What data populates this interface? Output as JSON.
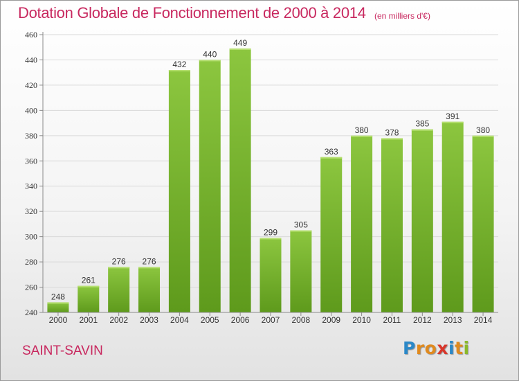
{
  "header": {
    "title": "Dotation Globale de Fonctionnement de 2000 à 2014",
    "unit": "(en milliers d'€)"
  },
  "footer": {
    "place": "SAINT-SAVIN",
    "logo": {
      "letters": [
        "P",
        "r",
        "o",
        "x",
        "i",
        "t",
        "i"
      ],
      "colors": [
        "#2a88c8",
        "#e08a1e",
        "#e08a1e",
        "#d8362a",
        "#2a88c8",
        "#e08a1e",
        "#8ab92a"
      ]
    }
  },
  "chart_data": {
    "type": "bar",
    "title": "Dotation Globale de Fonctionnement de 2000 à 2014",
    "subtitle": "(en milliers d'€)",
    "categories": [
      "2000",
      "2001",
      "2002",
      "2003",
      "2004",
      "2005",
      "2006",
      "2007",
      "2008",
      "2009",
      "2010",
      "2011",
      "2012",
      "2013",
      "2014"
    ],
    "values": [
      248,
      261,
      276,
      276,
      432,
      440,
      449,
      299,
      305,
      363,
      380,
      378,
      385,
      391,
      380
    ],
    "ylim": [
      240,
      460
    ],
    "yticks": [
      240,
      260,
      280,
      300,
      320,
      340,
      360,
      380,
      400,
      420,
      440,
      460
    ],
    "grid": true,
    "bar_color": "#8cc63f",
    "bar_color_dark": "#5e9a1c",
    "grid_color": "#d9d9d9",
    "axis_color": "#8a8a8a",
    "text_color": "#333333"
  }
}
